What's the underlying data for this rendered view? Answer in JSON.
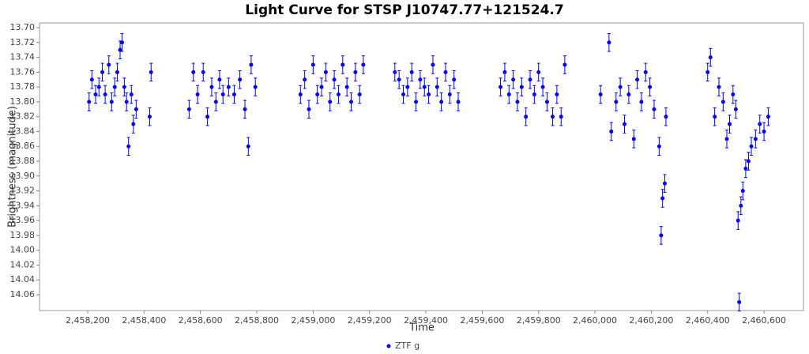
{
  "chart_data": {
    "type": "errorbar-scatter",
    "title": "Light Curve for STSP J10747.77+121524.7",
    "x_label": "Time",
    "y_label": "Brightness (magnitude)",
    "xlim": [
      2458029,
      2460740
    ],
    "ylim": [
      13.6936,
      14.0813
    ],
    "y_inverted": true,
    "xticks": [
      {
        "value": 2458200,
        "label": "2,458,200"
      },
      {
        "value": 2458400,
        "label": "2,458,400"
      },
      {
        "value": 2458600,
        "label": "2,458,600"
      },
      {
        "value": 2458800,
        "label": "2,458,800"
      },
      {
        "value": 2459000,
        "label": "2,459,000"
      },
      {
        "value": 2459200,
        "label": "2,459,200"
      },
      {
        "value": 2459400,
        "label": "2,459,400"
      },
      {
        "value": 2459600,
        "label": "2,459,600"
      },
      {
        "value": 2459800,
        "label": "2,459,800"
      },
      {
        "value": 2460000,
        "label": "2,460,000"
      },
      {
        "value": 2460200,
        "label": "2,460,200"
      },
      {
        "value": 2460400,
        "label": "2,460,400"
      },
      {
        "value": 2460600,
        "label": "2,460,600"
      }
    ],
    "yticks": [
      {
        "value": 13.7,
        "label": "13.70"
      },
      13.72,
      13.74,
      13.76,
      13.78,
      {
        "value": 13.8,
        "label": "13.80"
      },
      13.82,
      13.84,
      13.86,
      13.88,
      {
        "value": 13.9,
        "label": "13.90"
      },
      13.92,
      13.94,
      13.96,
      13.98,
      {
        "value": 14.0,
        "label": "14.00"
      },
      14.02,
      14.04,
      14.06
    ],
    "legend": "bottom",
    "series": [
      {
        "name": "ZTF g",
        "color": "#0000ff",
        "x": [
          2458205,
          2458215,
          2458228,
          2458240,
          2458252,
          2458262,
          2458275,
          2458285,
          2458296,
          2458305,
          2458315,
          2458322,
          2458330,
          2458338,
          2458345,
          2458355,
          2458362,
          2458372,
          2458420,
          2458425,
          2458560,
          2458575,
          2458590,
          2458610,
          2458625,
          2458640,
          2458655,
          2458668,
          2458680,
          2458700,
          2458720,
          2458740,
          2458758,
          2458770,
          2458780,
          2458795,
          2458955,
          2458970,
          2458985,
          2459000,
          2459015,
          2459030,
          2459045,
          2459060,
          2459075,
          2459090,
          2459105,
          2459120,
          2459135,
          2459150,
          2459165,
          2459178,
          2459290,
          2459305,
          2459320,
          2459335,
          2459350,
          2459365,
          2459380,
          2459395,
          2459410,
          2459425,
          2459440,
          2459455,
          2459470,
          2459485,
          2459500,
          2459515,
          2459665,
          2459680,
          2459695,
          2459710,
          2459725,
          2459740,
          2459755,
          2459770,
          2459785,
          2459800,
          2459815,
          2459830,
          2459850,
          2459865,
          2459880,
          2459893,
          2460020,
          2460050,
          2460058,
          2460075,
          2460090,
          2460105,
          2460120,
          2460138,
          2460150,
          2460165,
          2460180,
          2460195,
          2460210,
          2460228,
          2460235,
          2460240,
          2460248,
          2460252,
          2460400,
          2460410,
          2460425,
          2460440,
          2460455,
          2460468,
          2460478,
          2460490,
          2460500,
          2460508,
          2460512,
          2460518,
          2460525,
          2460535,
          2460545,
          2460555,
          2460570,
          2460585,
          2460600,
          2460615
        ],
        "values": [
          13.8,
          13.77,
          13.79,
          13.78,
          13.76,
          13.79,
          13.75,
          13.8,
          13.78,
          13.76,
          13.73,
          13.72,
          13.78,
          13.8,
          13.86,
          13.79,
          13.83,
          13.81,
          13.82,
          13.76,
          13.81,
          13.76,
          13.79,
          13.76,
          13.82,
          13.78,
          13.8,
          13.77,
          13.79,
          13.78,
          13.79,
          13.77,
          13.81,
          13.86,
          13.75,
          13.78,
          13.79,
          13.77,
          13.81,
          13.75,
          13.79,
          13.78,
          13.76,
          13.8,
          13.77,
          13.79,
          13.75,
          13.78,
          13.8,
          13.76,
          13.79,
          13.75,
          13.76,
          13.77,
          13.79,
          13.78,
          13.76,
          13.8,
          13.77,
          13.78,
          13.79,
          13.75,
          13.78,
          13.8,
          13.76,
          13.79,
          13.77,
          13.8,
          13.78,
          13.76,
          13.79,
          13.77,
          13.8,
          13.78,
          13.82,
          13.77,
          13.79,
          13.76,
          13.78,
          13.8,
          13.82,
          13.79,
          13.82,
          13.75,
          13.79,
          13.72,
          13.84,
          13.8,
          13.78,
          13.83,
          13.79,
          13.85,
          13.77,
          13.8,
          13.76,
          13.78,
          13.81,
          13.86,
          13.98,
          13.93,
          13.91,
          13.82,
          13.76,
          13.74,
          13.82,
          13.78,
          13.8,
          13.85,
          13.83,
          13.79,
          13.81,
          13.96,
          14.07,
          13.94,
          13.92,
          13.89,
          13.88,
          13.86,
          13.85,
          13.83,
          13.84,
          13.82
        ],
        "errors": [
          0.012,
          0.012,
          0.012,
          0.012,
          0.012,
          0.012,
          0.012,
          0.012,
          0.012,
          0.012,
          0.012,
          0.012,
          0.012,
          0.012,
          0.012,
          0.012,
          0.012,
          0.012,
          0.012,
          0.012,
          0.012,
          0.012,
          0.012,
          0.012,
          0.012,
          0.012,
          0.012,
          0.012,
          0.012,
          0.012,
          0.012,
          0.012,
          0.012,
          0.012,
          0.012,
          0.012,
          0.012,
          0.012,
          0.012,
          0.012,
          0.012,
          0.012,
          0.012,
          0.012,
          0.012,
          0.012,
          0.012,
          0.012,
          0.012,
          0.012,
          0.012,
          0.012,
          0.012,
          0.012,
          0.012,
          0.012,
          0.012,
          0.012,
          0.012,
          0.012,
          0.012,
          0.012,
          0.012,
          0.012,
          0.012,
          0.012,
          0.012,
          0.012,
          0.012,
          0.012,
          0.012,
          0.012,
          0.012,
          0.012,
          0.012,
          0.012,
          0.012,
          0.012,
          0.012,
          0.012,
          0.012,
          0.012,
          0.012,
          0.012,
          0.012,
          0.012,
          0.012,
          0.012,
          0.012,
          0.012,
          0.012,
          0.012,
          0.012,
          0.012,
          0.012,
          0.012,
          0.012,
          0.012,
          0.012,
          0.012,
          0.012,
          0.012,
          0.012,
          0.012,
          0.012,
          0.012,
          0.012,
          0.012,
          0.012,
          0.012,
          0.012,
          0.012,
          0.012,
          0.012,
          0.012,
          0.012,
          0.012,
          0.012,
          0.012,
          0.012,
          0.012,
          0.012
        ]
      }
    ]
  }
}
